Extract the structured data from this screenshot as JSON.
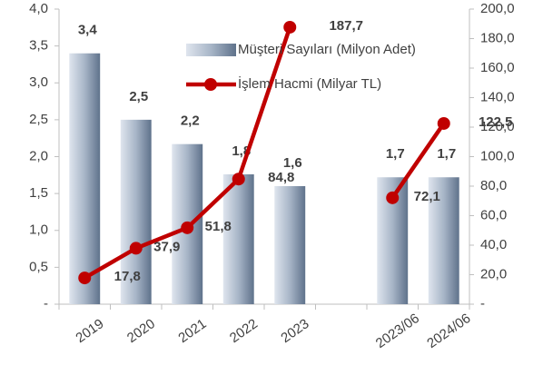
{
  "chart_data": {
    "type": "bar-line",
    "categories": [
      "2019",
      "2020",
      "2021",
      "2022",
      "2023",
      null,
      "2023/06",
      "2024/06"
    ],
    "series": [
      {
        "name": "Müşteri Sayıları (Milyon Adet)",
        "color": "#8497b0",
        "type": "bar",
        "values": [
          3.4,
          2.5,
          2.17,
          1.76,
          1.6,
          null,
          1.72,
          1.72
        ],
        "value_labels": [
          "3,4",
          "2,5",
          "2,2",
          "1,8",
          "1,6",
          null,
          "1,7",
          "1,7"
        ]
      },
      {
        "name": "İşlem Hacmi (Milyar TL)",
        "color": "#c00000",
        "type": "line",
        "axis": "y2",
        "values": [
          17.8,
          37.9,
          51.8,
          84.8,
          187.7,
          null,
          72.1,
          122.5
        ],
        "value_labels": [
          "17,8",
          "37,9",
          "51,8",
          "84,8",
          "187,7",
          null,
          "72,1",
          "122,5"
        ]
      }
    ],
    "ylim": [
      0,
      4
    ],
    "yticks": [
      {
        "value": 0,
        "label": "-"
      },
      {
        "value": 0.5,
        "label": "0,5"
      },
      {
        "value": 1,
        "label": "1,0"
      },
      {
        "value": 1.5,
        "label": "1,5"
      },
      {
        "value": 2,
        "label": "2,0"
      },
      {
        "value": 2.5,
        "label": "2,5"
      },
      {
        "value": 3,
        "label": "3,0"
      },
      {
        "value": 3.5,
        "label": "3,5"
      },
      {
        "value": 4,
        "label": "4,0"
      }
    ],
    "y2lim": [
      0,
      200
    ],
    "y2ticks": [
      {
        "value": 0,
        "label": "-"
      },
      {
        "value": 20,
        "label": "20,0"
      },
      {
        "value": 40,
        "label": "40,0"
      },
      {
        "value": 60,
        "label": "60,0"
      },
      {
        "value": 80,
        "label": "80,0"
      },
      {
        "value": 100,
        "label": "100,0"
      },
      {
        "value": 120,
        "label": "120,0"
      },
      {
        "value": 140,
        "label": "140,0"
      },
      {
        "value": 160,
        "label": "160,0"
      },
      {
        "value": 180,
        "label": "180,0"
      },
      {
        "value": 200,
        "label": "200,0"
      }
    ]
  }
}
